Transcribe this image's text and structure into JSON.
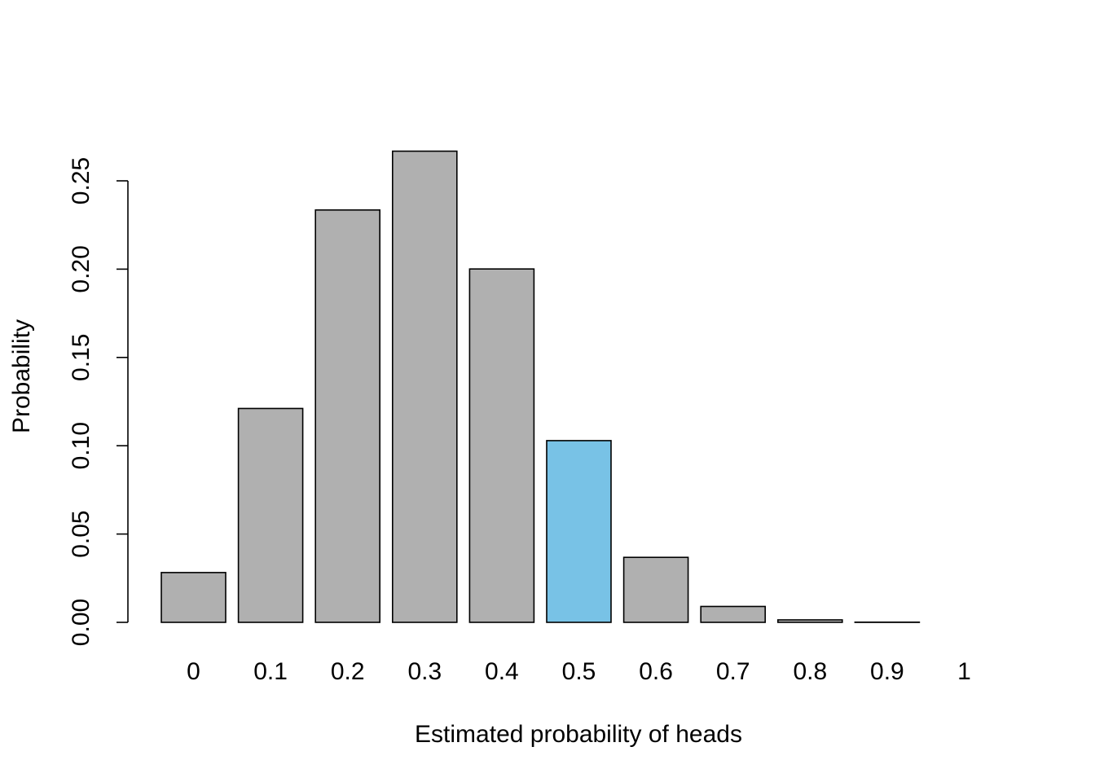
{
  "chart_data": {
    "type": "bar",
    "title": "",
    "xlabel": "Estimated probability of heads",
    "ylabel": "Probability",
    "categories": [
      "0",
      "0.1",
      "0.2",
      "0.3",
      "0.4",
      "0.5",
      "0.6",
      "0.7",
      "0.8",
      "0.9",
      "1"
    ],
    "values": [
      0.0282,
      0.1211,
      0.2335,
      0.2668,
      0.2001,
      0.1029,
      0.0368,
      0.009,
      0.0014,
      0.0001,
      0.0
    ],
    "highlight_category": "0.5",
    "ylim": [
      0,
      0.25
    ],
    "yticks": [
      "0.00",
      "0.05",
      "0.10",
      "0.15",
      "0.20",
      "0.25"
    ],
    "ytick_values": [
      0,
      0.05,
      0.1,
      0.15,
      0.2,
      0.25
    ],
    "grid": false,
    "legend": "none",
    "colors": {
      "bar_fill": "#b0b0b0",
      "highlight_fill": "#78c2e6",
      "bar_stroke": "#000000",
      "axis": "#000000",
      "background": "#ffffff"
    }
  }
}
